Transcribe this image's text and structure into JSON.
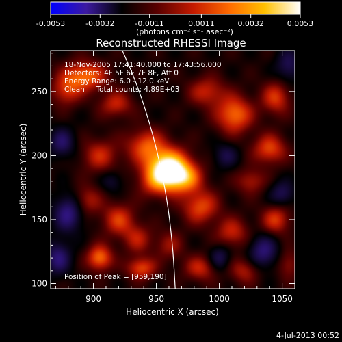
{
  "colorbar": {
    "ticks": [
      "-0.0053",
      "-0.0032",
      "-0.0011",
      "0.0011",
      "0.0032",
      "0.0053"
    ],
    "unit_label": "(photons cm⁻² s⁻¹ asec⁻²)",
    "min": -0.0053,
    "max": 0.0053,
    "colormap": [
      "#0000ff",
      "#3c1aa0",
      "#000000",
      "#5a0000",
      "#c41a00",
      "#ff6a00",
      "#ffc000",
      "#ffffff"
    ]
  },
  "chart_data": {
    "type": "heatmap",
    "title": "Reconstructed RHESSI Image",
    "xlabel": "Heliocentric X (arcsec)",
    "ylabel": "Heliocentric Y (arcsec)",
    "xlim": [
      866,
      1060
    ],
    "ylim": [
      96,
      282
    ],
    "xticks": [
      900,
      950,
      1000,
      1050
    ],
    "yticks": [
      100,
      150,
      200,
      250
    ],
    "info_lines": [
      "18-Nov-2005 17:41:40.000 to 17:43:56.000",
      "Detectors: 4F 5F 6F 7F 8F, Att 0",
      "Energy Range: 6.0 - 12.0 keV",
      "Clean     Total counts: 4.89E+03"
    ],
    "peak_label": "Position of Peak = [959,190]",
    "peak": [
      959,
      190
    ],
    "limb": [
      [
        923,
        282
      ],
      [
        935,
        255
      ],
      [
        948,
        215
      ],
      [
        958,
        170
      ],
      [
        963,
        130
      ],
      [
        965,
        96
      ]
    ],
    "blobs": [
      [
        959,
        190,
        12,
        10,
        1.0
      ],
      [
        942,
        208,
        11,
        9,
        0.45
      ],
      [
        972,
        182,
        10,
        8,
        0.5
      ],
      [
        950,
        178,
        10,
        8,
        0.3
      ],
      [
        893,
        262,
        12,
        8,
        0.55
      ],
      [
        878,
        250,
        8,
        8,
        0.35
      ],
      [
        918,
        240,
        9,
        7,
        0.35
      ],
      [
        990,
        250,
        10,
        8,
        0.35
      ],
      [
        1012,
        232,
        10,
        10,
        0.55
      ],
      [
        1045,
        245,
        8,
        9,
        0.4
      ],
      [
        1040,
        205,
        9,
        8,
        0.45
      ],
      [
        1025,
        180,
        8,
        7,
        0.3
      ],
      [
        985,
        160,
        10,
        9,
        0.45
      ],
      [
        1010,
        140,
        9,
        8,
        0.35
      ],
      [
        1045,
        150,
        8,
        8,
        0.4
      ],
      [
        905,
        200,
        10,
        9,
        0.35
      ],
      [
        895,
        165,
        8,
        8,
        0.3
      ],
      [
        920,
        150,
        9,
        9,
        0.4
      ],
      [
        935,
        135,
        8,
        8,
        0.3
      ],
      [
        905,
        120,
        7,
        7,
        0.55
      ],
      [
        938,
        112,
        8,
        6,
        0.45
      ],
      [
        960,
        130,
        8,
        8,
        0.25
      ],
      [
        985,
        112,
        9,
        7,
        0.35
      ],
      [
        1020,
        110,
        8,
        7,
        0.3
      ],
      [
        1055,
        115,
        6,
        8,
        0.25
      ],
      [
        875,
        210,
        7,
        8,
        -0.35
      ],
      [
        880,
        155,
        8,
        10,
        -0.45
      ],
      [
        872,
        120,
        7,
        9,
        -0.4
      ],
      [
        1035,
        125,
        8,
        9,
        -0.4
      ],
      [
        1000,
        120,
        6,
        7,
        -0.3
      ],
      [
        1050,
        170,
        7,
        7,
        -0.3
      ],
      [
        1005,
        200,
        7,
        7,
        -0.25
      ],
      [
        1055,
        270,
        7,
        9,
        -0.3
      ],
      [
        915,
        180,
        6,
        6,
        -0.2
      ]
    ]
  },
  "footer": {
    "timestamp": "4-Jul-2013 00:52"
  }
}
